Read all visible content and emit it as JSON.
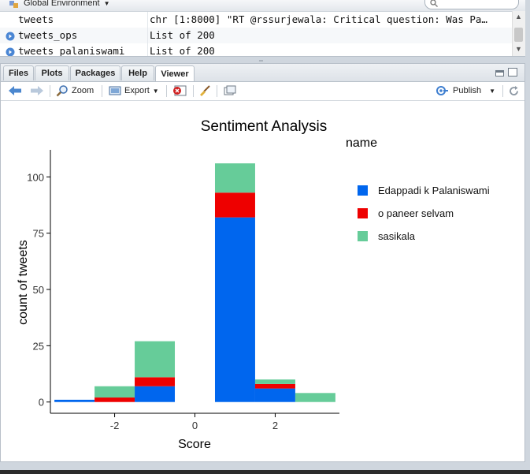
{
  "environment": {
    "selector_label": "Global Environment",
    "rows": [
      {
        "name": "tweets",
        "value": "chr [1:8000] \"RT @rssurjewala: Critical question: Was Pa…"
      },
      {
        "name": "tweets_ops",
        "value": "List of 200"
      },
      {
        "name": "tweets_palaniswami",
        "value": "List of 200"
      }
    ]
  },
  "tabs": [
    {
      "id": "files",
      "label": "Files"
    },
    {
      "id": "plots",
      "label": "Plots"
    },
    {
      "id": "packages",
      "label": "Packages"
    },
    {
      "id": "help",
      "label": "Help"
    },
    {
      "id": "viewer",
      "label": "Viewer",
      "active": true
    }
  ],
  "toolbar": {
    "zoom_label": "Zoom",
    "export_label": "Export",
    "publish_label": "Publish",
    "icons": [
      "back-arrow-icon",
      "forward-arrow-icon",
      "zoom-icon",
      "export-icon",
      "remove-icon",
      "broom-icon",
      "refresh-icon"
    ]
  },
  "chart_data": {
    "type": "bar",
    "stacked": true,
    "title": "Sentiment Analysis",
    "xlabel": "Score",
    "ylabel": "count of tweets",
    "legend_title": "name",
    "legend_position": "right",
    "xlim": [
      -3.6,
      3.6
    ],
    "ylim": [
      -5,
      112
    ],
    "x_ticks": [
      -2,
      0,
      2
    ],
    "y_ticks": [
      0,
      25,
      50,
      75,
      100
    ],
    "x_tick_labels": [
      "-2",
      "0",
      "2"
    ],
    "y_tick_labels": [
      "0",
      "25",
      "50",
      "75",
      "100"
    ],
    "bin_width": 1,
    "categories": [
      -3,
      -2,
      -1,
      1,
      2,
      3
    ],
    "series": [
      {
        "name": "Edappadi k Palaniswami",
        "color": "#0066ee",
        "values": [
          1,
          0,
          7,
          82,
          6,
          0
        ]
      },
      {
        "name": "o paneer selvam",
        "color": "#ee0000",
        "values": [
          0,
          2,
          4,
          11,
          2,
          0
        ]
      },
      {
        "name": "sasikala",
        "color": "#66cc99",
        "values": [
          0,
          5,
          16,
          13,
          2,
          4
        ]
      }
    ]
  }
}
